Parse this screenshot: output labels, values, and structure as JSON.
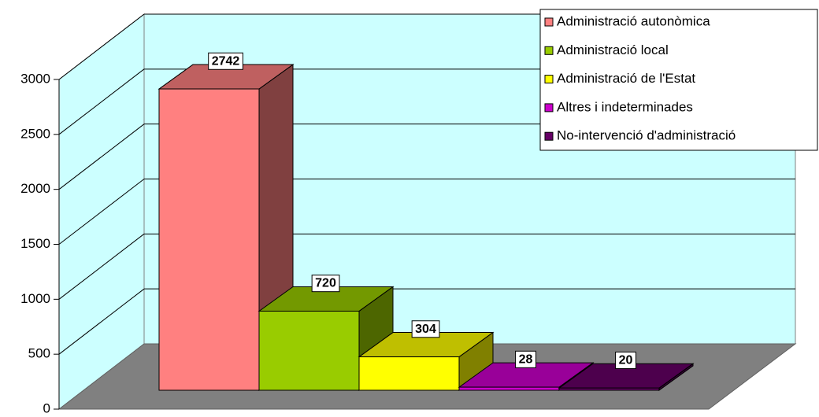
{
  "chart_data": {
    "type": "bar3d",
    "categories": [
      null
    ],
    "series": [
      {
        "name": "Administració autonòmica",
        "color": "#ff8080",
        "values": [
          2742
        ]
      },
      {
        "name": "Administració local",
        "color": "#99cc00",
        "values": [
          720
        ]
      },
      {
        "name": "Administració de l'Estat",
        "color": "#ffff00",
        "values": [
          304
        ]
      },
      {
        "name": "Altres i indeterminades",
        "color": "#cc00cc",
        "values": [
          28
        ]
      },
      {
        "name": "No-intervenció d'administració",
        "color": "#660066",
        "values": [
          20
        ]
      }
    ],
    "ylim": [
      0,
      3000
    ],
    "yticks": [
      0,
      500,
      1000,
      1500,
      2000,
      2500,
      3000
    ],
    "grid": true,
    "legend": "top-right"
  }
}
